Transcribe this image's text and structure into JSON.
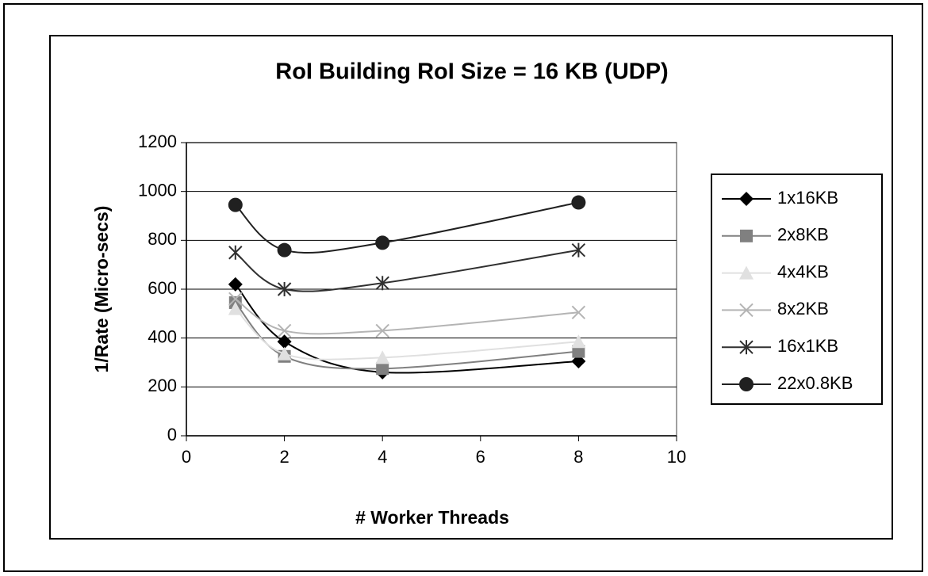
{
  "chart_data": {
    "type": "line",
    "title": "RoI Building RoI Size = 16 KB (UDP)",
    "x_label": "# Worker Threads",
    "y_label": "1/Rate (Micro-secs)",
    "x": [
      1,
      2,
      4,
      8
    ],
    "series": [
      {
        "name": "1x16KB",
        "color": "#000000",
        "marker": "diamond",
        "values": [
          620,
          385,
          260,
          305
        ]
      },
      {
        "name": "2x8KB",
        "color": "#808080",
        "marker": "square",
        "values": [
          545,
          325,
          275,
          345
        ]
      },
      {
        "name": "4x4KB",
        "color": "#e0e0e0",
        "marker": "triangle",
        "values": [
          520,
          335,
          320,
          385
        ]
      },
      {
        "name": "8x2KB",
        "color": "#b4b4b4",
        "marker": "x",
        "values": [
          560,
          430,
          430,
          505
        ]
      },
      {
        "name": "16x1KB",
        "color": "#303030",
        "marker": "star",
        "values": [
          750,
          600,
          625,
          760
        ]
      },
      {
        "name": "22x0.8KB",
        "color": "#202020",
        "marker": "circle",
        "values": [
          945,
          760,
          790,
          955
        ]
      }
    ],
    "xlim": [
      0,
      10
    ],
    "xticks": [
      0,
      2,
      4,
      6,
      8,
      10
    ],
    "ylim": [
      0,
      1200
    ],
    "yticks": [
      0,
      200,
      400,
      600,
      800,
      1000,
      1200
    ],
    "grid": true,
    "smooth": true,
    "legend": "right"
  }
}
